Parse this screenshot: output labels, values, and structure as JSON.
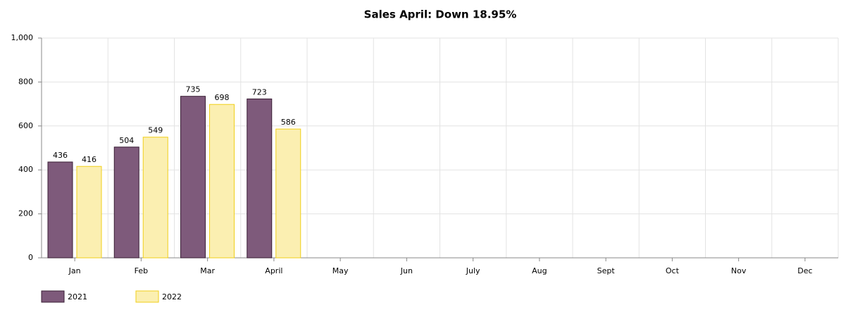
{
  "chart_data": {
    "type": "bar",
    "title": "Sales April: Down 18.95%",
    "categories": [
      "Jan",
      "Feb",
      "Mar",
      "April",
      "May",
      "Jun",
      "July",
      "Aug",
      "Sept",
      "Oct",
      "Nov",
      "Dec"
    ],
    "series": [
      {
        "name": "2021",
        "color": "#7e5a7b",
        "values": [
          436,
          504,
          735,
          723,
          null,
          null,
          null,
          null,
          null,
          null,
          null,
          null
        ]
      },
      {
        "name": "2022",
        "color": "#fbefb1",
        "values": [
          416,
          549,
          698,
          586,
          null,
          null,
          null,
          null,
          null,
          null,
          null,
          null
        ]
      }
    ],
    "ylim": [
      0,
      1000
    ],
    "yticks": [
      0,
      200,
      400,
      600,
      800,
      {
        "value": 1000,
        "label": "1,000"
      }
    ],
    "grid": true,
    "legend": "bottom-left"
  }
}
